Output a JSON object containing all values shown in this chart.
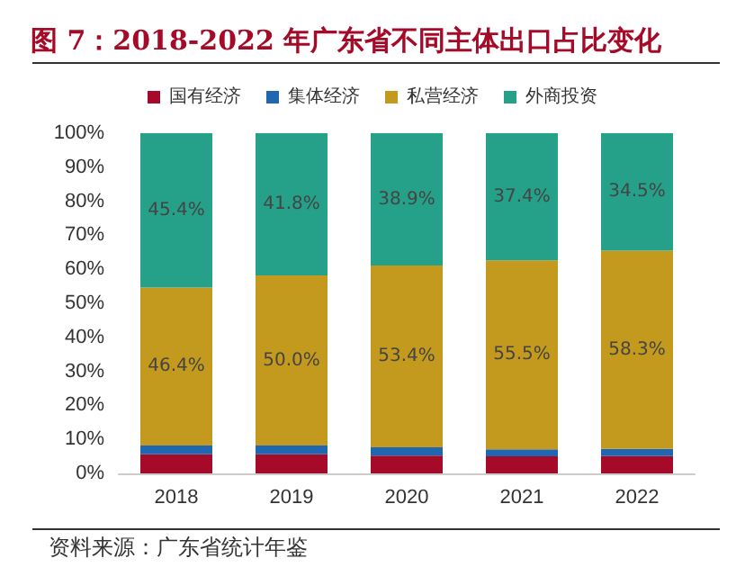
{
  "chart_data": {
    "type": "bar",
    "title": "图 7：2018-2022 年广东省不同主体出口占比变化",
    "stacked": true,
    "categories": [
      "2018",
      "2019",
      "2020",
      "2021",
      "2022"
    ],
    "series": [
      {
        "name": "国有经济",
        "color": "#a50b28",
        "values": [
          5.6,
          5.6,
          5.2,
          5.0,
          5.1
        ]
      },
      {
        "name": "集体经济",
        "color": "#2166b0",
        "values": [
          2.6,
          2.6,
          2.5,
          2.1,
          2.1
        ]
      },
      {
        "name": "私营经济",
        "color": "#c49a1e",
        "values": [
          46.4,
          50.0,
          53.4,
          55.5,
          58.3
        ],
        "value_labels": [
          "46.4%",
          "50.0%",
          "53.4%",
          "55.5%",
          "58.3%"
        ]
      },
      {
        "name": "外商投资",
        "color": "#25a18a",
        "values": [
          45.4,
          41.8,
          38.9,
          37.4,
          34.5
        ],
        "value_labels": [
          "45.4%",
          "41.8%",
          "38.9%",
          "37.4%",
          "34.5%"
        ]
      }
    ],
    "ylim": [
      0,
      100
    ],
    "yticks": [
      {
        "value": 0,
        "label": "0%"
      },
      {
        "value": 10,
        "label": "10%"
      },
      {
        "value": 20,
        "label": "20%"
      },
      {
        "value": 30,
        "label": "30%"
      },
      {
        "value": 40,
        "label": "40%"
      },
      {
        "value": 50,
        "label": "50%"
      },
      {
        "value": 60,
        "label": "60%"
      },
      {
        "value": 70,
        "label": "70%"
      },
      {
        "value": 80,
        "label": "80%"
      },
      {
        "value": 90,
        "label": "90%"
      },
      {
        "value": 100,
        "label": "100%"
      }
    ],
    "grid": false,
    "legend": "top",
    "annotations": [
      "资料来源：广东省统计年鉴"
    ]
  }
}
